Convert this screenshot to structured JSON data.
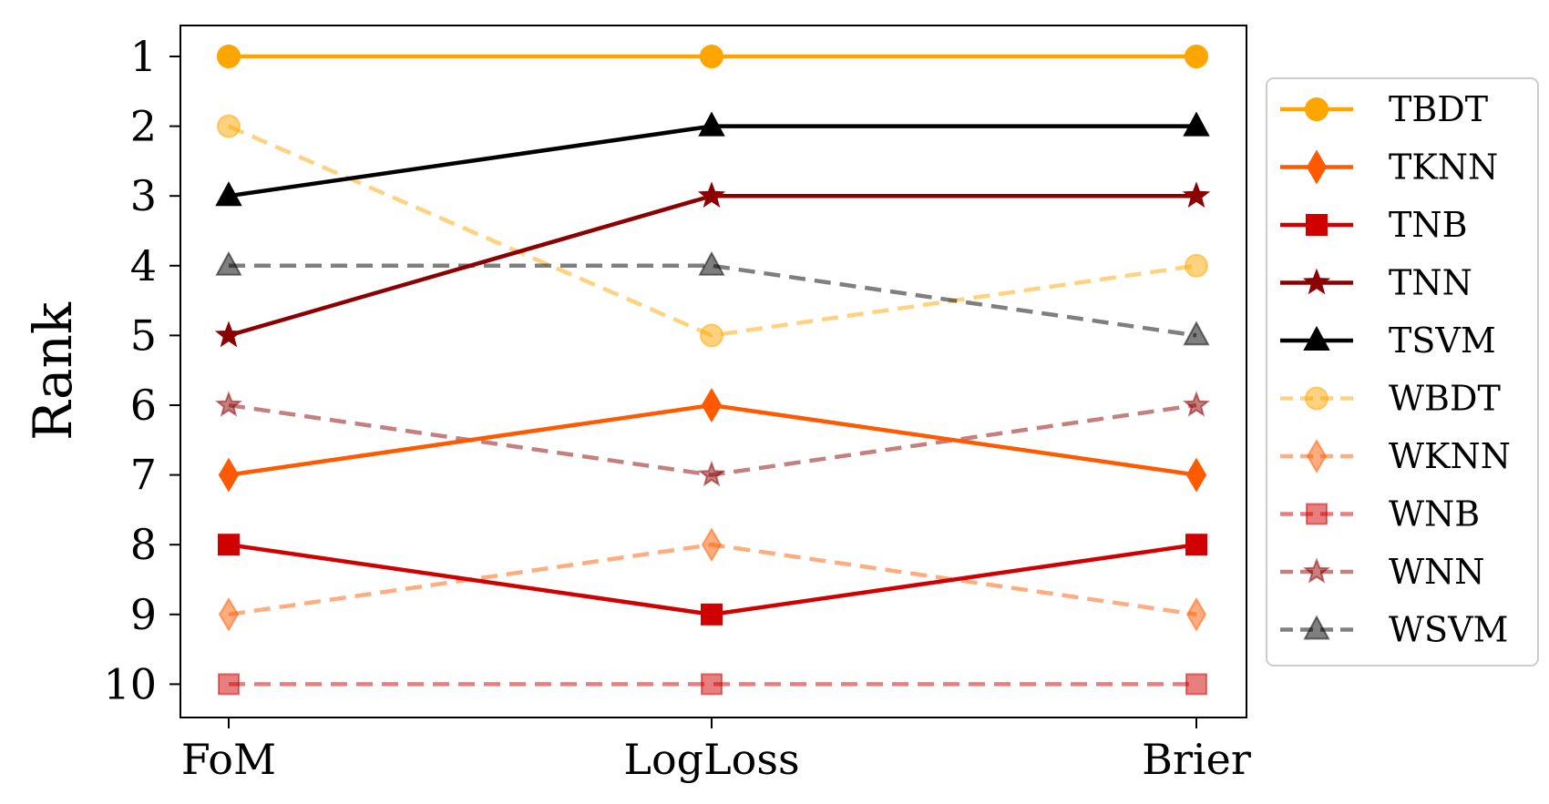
{
  "chart_data": {
    "type": "line",
    "title": "",
    "xlabel": "",
    "ylabel": "Rank",
    "categories": [
      "FoM",
      "LogLoss",
      "Brier"
    ],
    "yticks": [
      "1",
      "2",
      "3",
      "4",
      "5",
      "6",
      "7",
      "8",
      "9",
      "10"
    ],
    "ylim": [
      10.45,
      0.55
    ],
    "y_inverted": true,
    "grid": false,
    "legend_position": "right",
    "series": [
      {
        "name": "TBDT",
        "values": [
          1,
          1,
          1
        ],
        "color": "#ffa500",
        "marker": "circle",
        "dashed": false,
        "alpha": 1.0
      },
      {
        "name": "TKNN",
        "values": [
          7,
          6,
          7
        ],
        "color": "#ff5a00",
        "marker": "diamond",
        "dashed": false,
        "alpha": 1.0
      },
      {
        "name": "TNB",
        "values": [
          8,
          9,
          8
        ],
        "color": "#d00000",
        "marker": "square",
        "dashed": false,
        "alpha": 1.0
      },
      {
        "name": "TNN",
        "values": [
          5,
          3,
          3
        ],
        "color": "#8b0000",
        "marker": "star",
        "dashed": false,
        "alpha": 1.0
      },
      {
        "name": "TSVM",
        "values": [
          3,
          2,
          2
        ],
        "color": "#000000",
        "marker": "triangle",
        "dashed": false,
        "alpha": 1.0
      },
      {
        "name": "WBDT",
        "values": [
          2,
          5,
          4
        ],
        "color": "#ffa500",
        "marker": "circle",
        "dashed": true,
        "alpha": 0.5
      },
      {
        "name": "WKNN",
        "values": [
          9,
          8,
          9
        ],
        "color": "#ff5a00",
        "marker": "diamond",
        "dashed": true,
        "alpha": 0.5
      },
      {
        "name": "WNB",
        "values": [
          10,
          10,
          10
        ],
        "color": "#d00000",
        "marker": "square",
        "dashed": true,
        "alpha": 0.5
      },
      {
        "name": "WNN",
        "values": [
          6,
          7,
          6
        ],
        "color": "#8b0000",
        "marker": "star",
        "dashed": true,
        "alpha": 0.5
      },
      {
        "name": "WSVM",
        "values": [
          4,
          4,
          5
        ],
        "color": "#000000",
        "marker": "triangle",
        "dashed": true,
        "alpha": 0.5
      }
    ]
  }
}
